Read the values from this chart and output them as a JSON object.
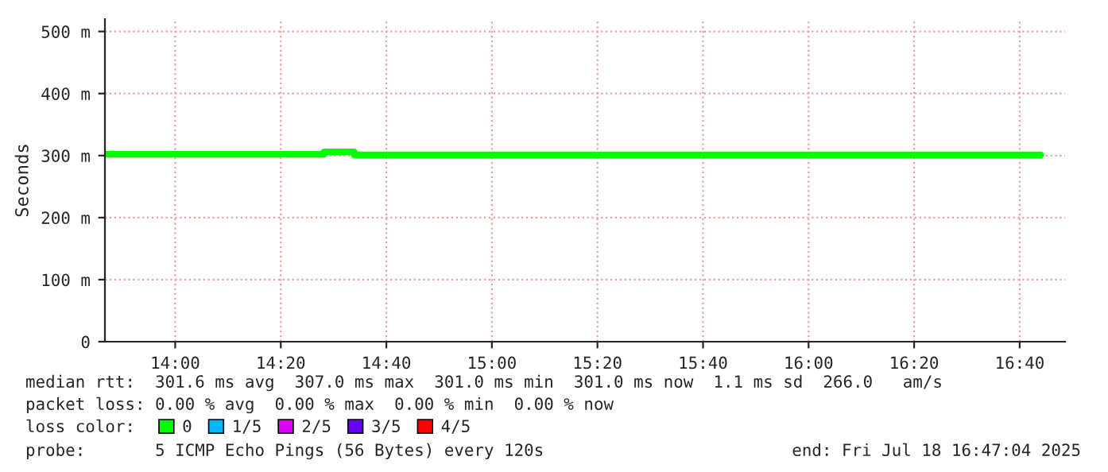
{
  "chart_data": {
    "type": "step",
    "ylabel": "Seconds",
    "x": [
      13.778,
      14.47,
      14.565,
      16.733
    ],
    "series": [
      {
        "name": "0",
        "color": "#00ff00",
        "values": [
          302,
          306,
          301,
          301
        ]
      },
      {
        "name": "1/5",
        "color": "#00b8ff",
        "values": [
          null,
          null,
          null,
          null
        ]
      },
      {
        "name": "2/5",
        "color": "#dd00ff",
        "values": [
          null,
          null,
          null,
          null
        ]
      },
      {
        "name": "3/5",
        "color": "#6600ff",
        "values": [
          null,
          null,
          null,
          null
        ]
      },
      {
        "name": "4/5",
        "color": "#ff0000",
        "values": [
          null,
          null,
          null,
          null
        ]
      }
    ],
    "legend_title": "loss color:",
    "legend": "bottom",
    "xlim": [
      13.778,
      16.81
    ],
    "xticks": [
      {
        "value": 14.0,
        "label": "14:00"
      },
      {
        "value": 14.3333,
        "label": "14:20"
      },
      {
        "value": 14.6667,
        "label": "14:40"
      },
      {
        "value": 15.0,
        "label": "15:00"
      },
      {
        "value": 15.3333,
        "label": "15:20"
      },
      {
        "value": 15.6667,
        "label": "15:40"
      },
      {
        "value": 16.0,
        "label": "16:00"
      },
      {
        "value": 16.3333,
        "label": "16:20"
      },
      {
        "value": 16.6667,
        "label": "16:40"
      }
    ],
    "ylim": [
      0,
      520
    ],
    "yticks": [
      {
        "value": 0,
        "label": "0"
      },
      {
        "value": 100,
        "label": "100 m"
      },
      {
        "value": 200,
        "label": "200 m"
      },
      {
        "value": 300,
        "label": "300 m"
      },
      {
        "value": 400,
        "label": "400 m"
      },
      {
        "value": 500,
        "label": "500 m"
      }
    ],
    "grid": true,
    "annotations": [
      "median rtt:  301.6 ms avg  307.0 ms max  301.0 ms min  301.0 ms now  1.1 ms sd  266.0   am/s",
      "packet loss: 0.00 % avg  0.00 % max  0.00 % min  0.00 % now",
      "probe:       5 ICMP Echo Pings (56 Bytes) every 120s",
      "end: Fri Jul 18 16:47:04 2025"
    ]
  }
}
